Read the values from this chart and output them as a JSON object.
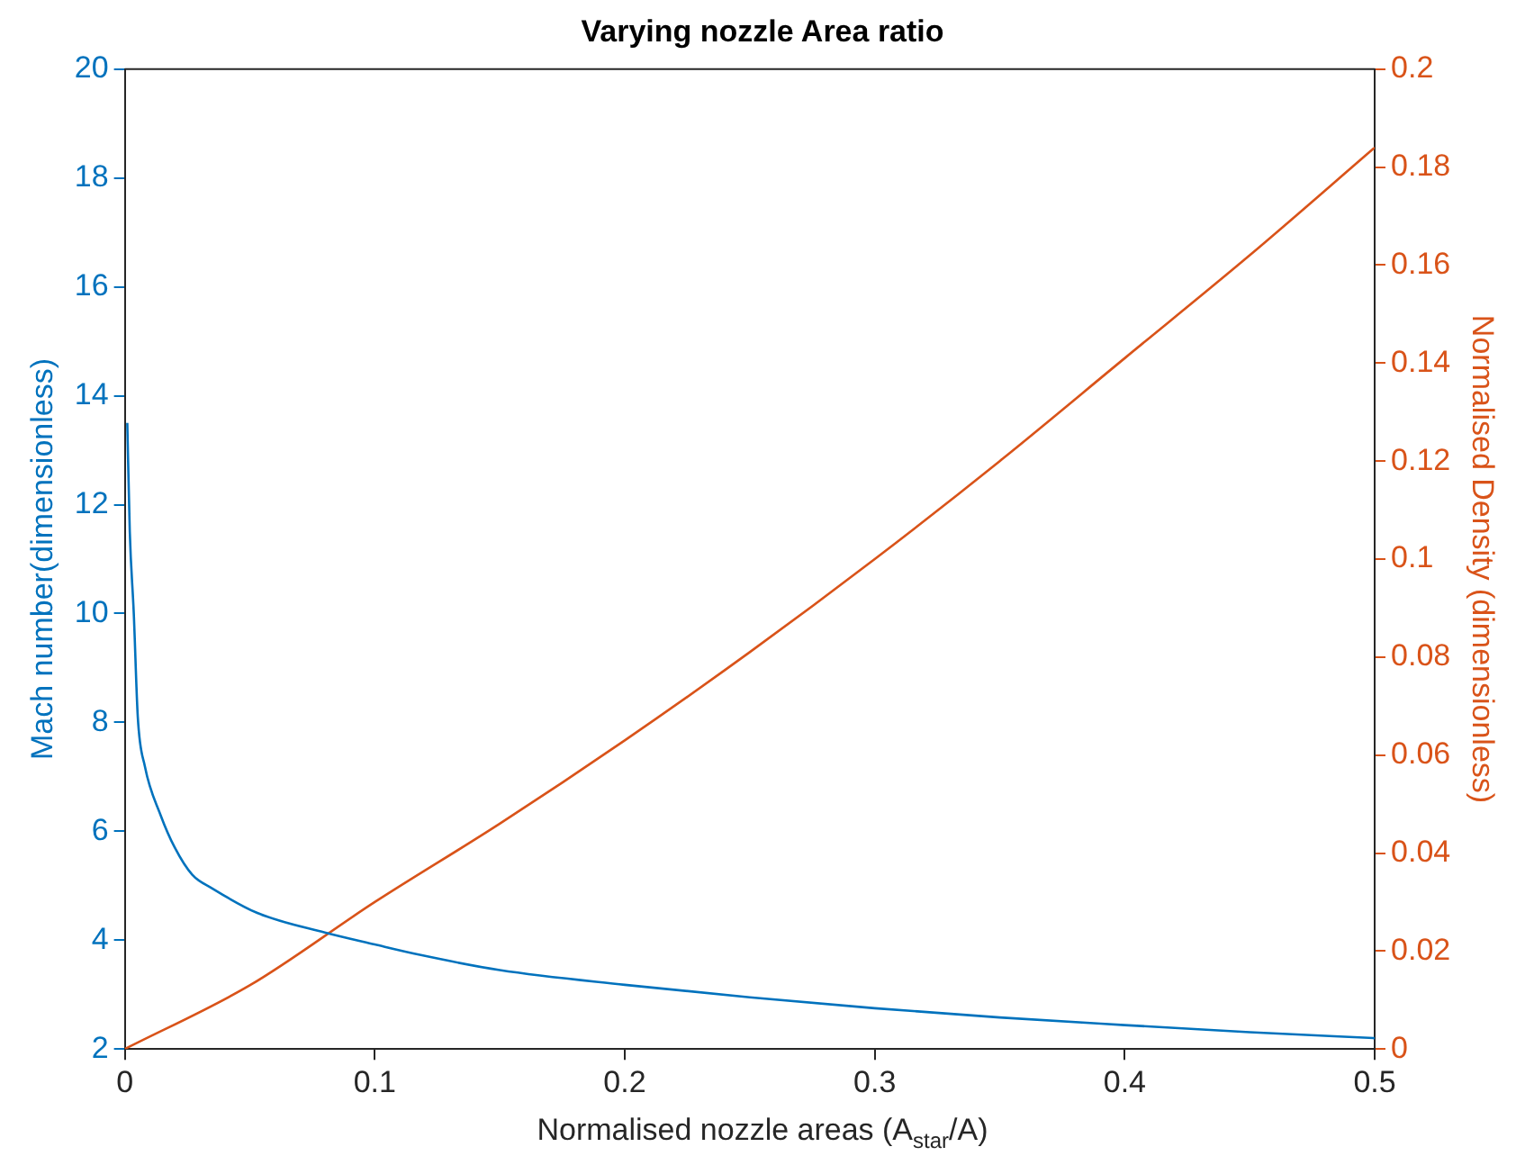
{
  "chart_data": {
    "type": "line",
    "title": "Varying nozzle Area ratio",
    "xlabel": "Normalised nozzle areas (A$_{star}$/A)",
    "ylabel": "Mach number(dimensionless)",
    "y2label": "Normalised Density (dimensionless)",
    "xlim": [
      0,
      0.5
    ],
    "xticks": [
      0,
      0.1,
      0.2,
      0.3,
      0.4,
      0.5
    ],
    "ylim": [
      2,
      20
    ],
    "yticks": [
      2,
      4,
      6,
      8,
      10,
      12,
      14,
      16,
      18,
      20
    ],
    "y2lim": [
      0,
      0.2
    ],
    "y2ticks": [
      0,
      0.02,
      0.04,
      0.06,
      0.08,
      0.1,
      0.12,
      0.14,
      0.16,
      0.18,
      0.2
    ],
    "series": [
      {
        "type": "line",
        "color": "#0072bd",
        "x": [
          0.001,
          0.002,
          0.0036,
          0.0052,
          0.008,
          0.0143,
          0.02,
          0.027,
          0.035,
          0.053,
          0.08,
          0.1,
          0.118,
          0.15,
          0.2,
          0.25,
          0.3,
          0.35,
          0.4,
          0.45,
          0.5
        ],
        "values": [
          13.5,
          11.5,
          10,
          8.1,
          7.2,
          6.3,
          5.7,
          5.2,
          4.95,
          4.5,
          4.14,
          3.92,
          3.73,
          3.45,
          3.18,
          2.95,
          2.75,
          2.58,
          2.44,
          2.31,
          2.2
        ]
      },
      {
        "type": "line",
        "color": "#d95319",
        "axis": "y2",
        "x": [
          0,
          0.05,
          0.1,
          0.15,
          0.2,
          0.25,
          0.3,
          0.35,
          0.4,
          0.45,
          0.5
        ],
        "values": [
          0,
          0.013,
          0.03,
          0.046,
          0.063,
          0.081,
          0.1,
          0.12,
          0.141,
          0.162,
          0.184
        ]
      }
    ]
  }
}
